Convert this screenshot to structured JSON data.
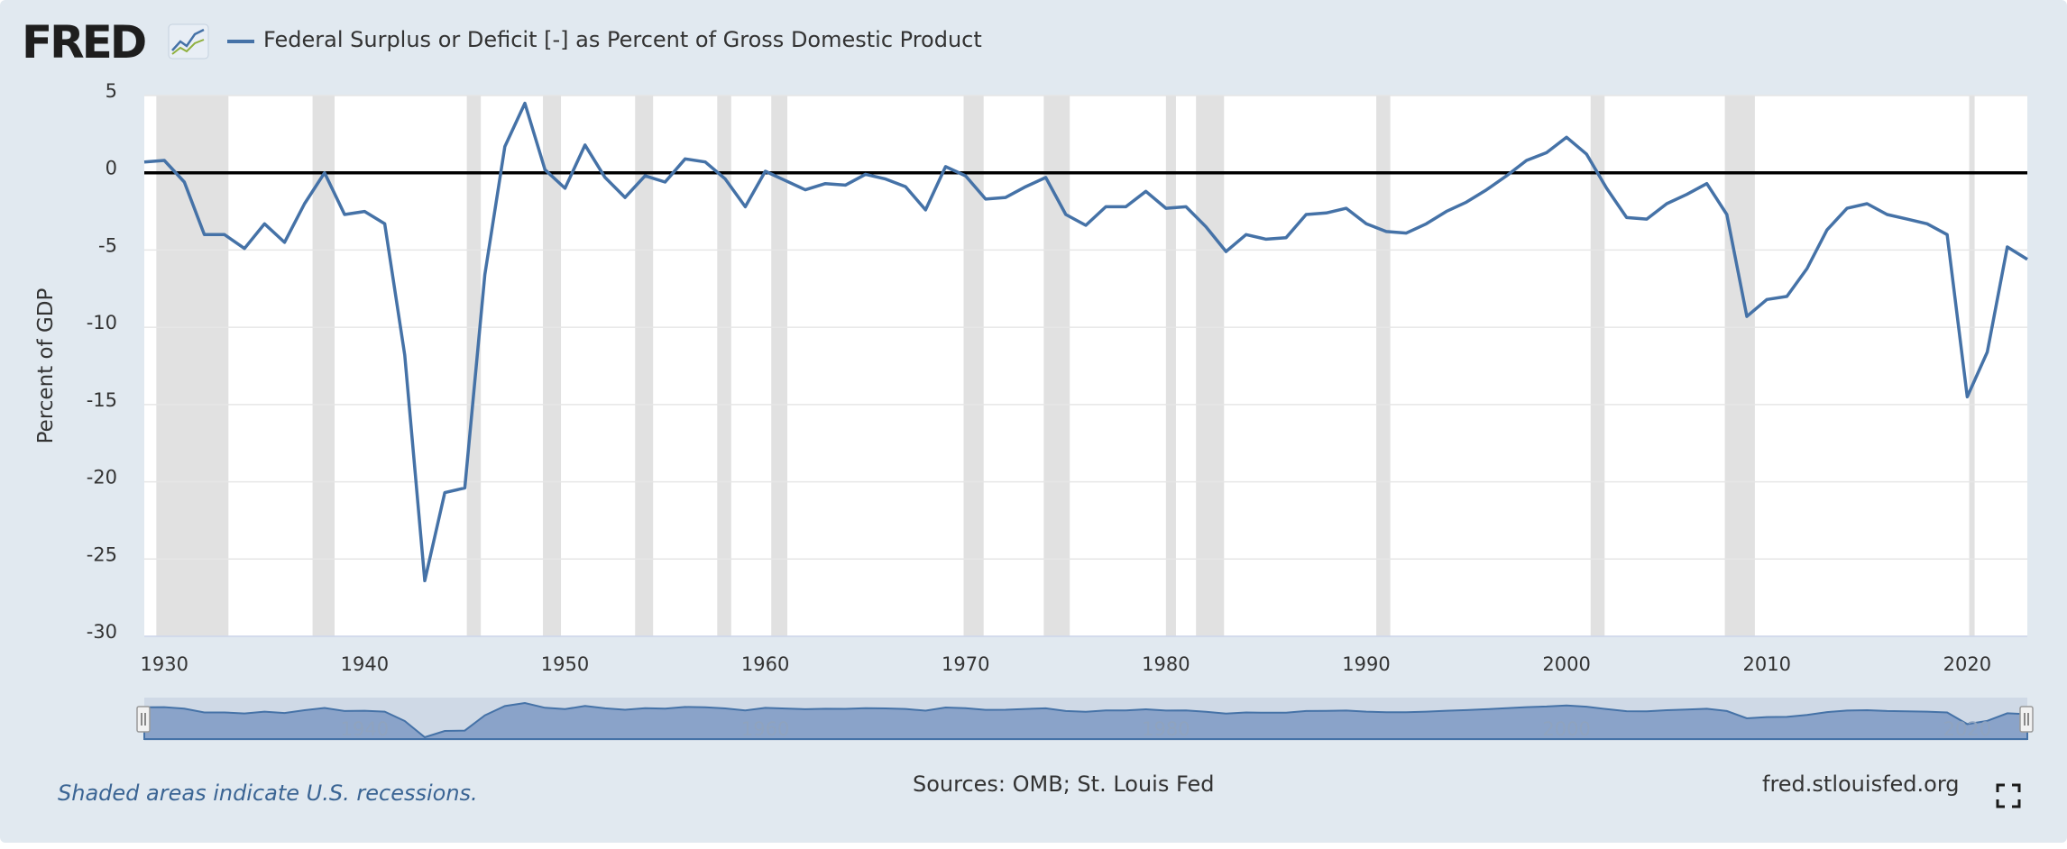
{
  "header": {
    "logo_text": "FRED",
    "legend_label": "Federal Surplus or Deficit [-] as Percent of Gross Domestic Product"
  },
  "footer": {
    "recession_note": "Shaded areas indicate U.S. recessions.",
    "sources": "Sources: OMB; St. Louis Fed",
    "site": "fred.stlouisfed.org"
  },
  "colors": {
    "background": "#e1e9f0",
    "series": "#4572a7",
    "recession": "#e1e1e1",
    "zero_line": "#000000",
    "navigator_fill": "#8aa3c9",
    "navigator_line": "#4572a7"
  },
  "icons": {
    "fullscreen": "fullscreen-icon",
    "logo_graph": "line-graph-icon"
  },
  "chart_data": {
    "type": "line",
    "title": "",
    "xlabel": "",
    "ylabel": "Percent of GDP",
    "xlim": [
      1929,
      2023
    ],
    "ylim": [
      -30,
      5
    ],
    "yticks": [
      5,
      0,
      -5,
      -10,
      -15,
      -20,
      -25,
      -30
    ],
    "xticks": [
      1930,
      1940,
      1950,
      1960,
      1970,
      1980,
      1990,
      2000,
      2010,
      2020
    ],
    "navigator_ticks": [
      1940,
      1960,
      1980,
      2000,
      2020
    ],
    "grid": true,
    "reference_line": 0,
    "recessions": [
      [
        1929.6,
        1933.2
      ],
      [
        1937.4,
        1938.5
      ],
      [
        1945.1,
        1945.8
      ],
      [
        1948.9,
        1949.8
      ],
      [
        1953.5,
        1954.4
      ],
      [
        1957.6,
        1958.3
      ],
      [
        1960.3,
        1961.1
      ],
      [
        1969.9,
        1970.9
      ],
      [
        1973.9,
        1975.2
      ],
      [
        1980.0,
        1980.5
      ],
      [
        1981.5,
        1982.9
      ],
      [
        1990.5,
        1991.2
      ],
      [
        2001.2,
        2001.9
      ],
      [
        2007.9,
        2009.4
      ],
      [
        2020.1,
        2020.3
      ]
    ],
    "series": [
      {
        "name": "Federal Surplus or Deficit [-] as Percent of Gross Domestic Product",
        "x": [
          1929,
          1930,
          1931,
          1932,
          1933,
          1934,
          1935,
          1936,
          1937,
          1938,
          1939,
          1940,
          1941,
          1942,
          1943,
          1944,
          1945,
          1946,
          1947,
          1948,
          1949,
          1950,
          1951,
          1952,
          1953,
          1954,
          1955,
          1956,
          1957,
          1958,
          1959,
          1960,
          1961,
          1962,
          1963,
          1964,
          1965,
          1966,
          1967,
          1968,
          1969,
          1970,
          1971,
          1972,
          1973,
          1974,
          1975,
          1976,
          1977,
          1978,
          1979,
          1980,
          1981,
          1982,
          1983,
          1984,
          1985,
          1986,
          1987,
          1988,
          1989,
          1990,
          1991,
          1992,
          1993,
          1994,
          1995,
          1996,
          1997,
          1998,
          1999,
          2000,
          2001,
          2002,
          2003,
          2004,
          2005,
          2006,
          2007,
          2008,
          2009,
          2010,
          2011,
          2012,
          2013,
          2014,
          2015,
          2016,
          2017,
          2018,
          2019,
          2020,
          2021,
          2022,
          2023
        ],
        "y": [
          0.7,
          0.8,
          -0.6,
          -4.0,
          -4.0,
          -4.9,
          -3.3,
          -4.5,
          -2.0,
          0.0,
          -2.7,
          -2.5,
          -3.3,
          -11.8,
          -26.4,
          -20.7,
          -20.4,
          -6.6,
          1.7,
          4.5,
          0.2,
          -1.0,
          1.8,
          -0.3,
          -1.6,
          -0.2,
          -0.6,
          0.9,
          0.7,
          -0.4,
          -2.2,
          0.1,
          -0.5,
          -1.1,
          -0.7,
          -0.8,
          -0.1,
          -0.4,
          -0.9,
          -2.4,
          0.4,
          -0.2,
          -1.7,
          -1.6,
          -0.9,
          -0.3,
          -2.7,
          -3.4,
          -2.2,
          -2.2,
          -1.2,
          -2.3,
          -2.2,
          -3.5,
          -5.1,
          -4.0,
          -4.3,
          -4.2,
          -2.7,
          -2.6,
          -2.3,
          -3.3,
          -3.8,
          -3.9,
          -3.3,
          -2.5,
          -1.9,
          -1.1,
          -0.2,
          0.8,
          1.3,
          2.3,
          1.2,
          -1.0,
          -2.9,
          -3.0,
          -2.0,
          -1.4,
          -0.7,
          -2.7,
          -9.3,
          -8.2,
          -8.0,
          -6.2,
          -3.7,
          -2.3,
          -2.0,
          -2.7,
          -3.0,
          -3.3,
          -4.0,
          -14.5,
          -11.6,
          -4.8,
          -5.6
        ]
      }
    ]
  }
}
